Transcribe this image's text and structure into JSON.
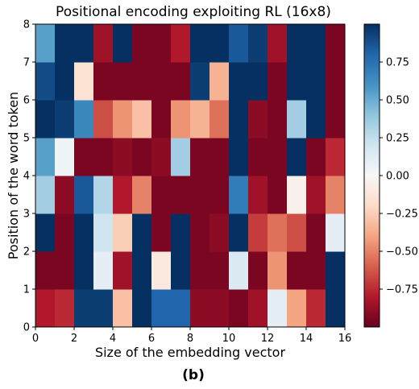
{
  "caption": "(b)",
  "colorbar": {
    "ticks": [
      0.75,
      0.5,
      0.25,
      0.0,
      -0.25,
      -0.5,
      -0.75
    ],
    "tick_labels": [
      "0.75",
      "0.50",
      "0.25",
      "0.00",
      "−0.25",
      "−0.50",
      "−0.75"
    ],
    "range": [
      -1,
      1
    ],
    "colors": [
      "#67001f",
      "#b2182b",
      "#d6604d",
      "#f4a582",
      "#fddbc7",
      "#f7f7f7",
      "#d1e5f0",
      "#92c5de",
      "#4393c3",
      "#2166ac",
      "#053061"
    ]
  },
  "chart_data": {
    "type": "heatmap",
    "title": "Positional encoding exploiting RL (16x8)",
    "xlabel": "Size of the embedding vector",
    "ylabel": "Position of the word token",
    "colormap": "RdBu",
    "xlim": [
      0,
      16
    ],
    "ylim": [
      0,
      8
    ],
    "xticks": [
      0,
      2,
      4,
      6,
      8,
      10,
      12,
      14,
      16
    ],
    "yticks": [
      0,
      1,
      2,
      3,
      4,
      5,
      6,
      7,
      8
    ],
    "value_range": [
      -1,
      1
    ],
    "rows_bottom_to_top": [
      [
        -0.8,
        -0.75,
        0.95,
        0.95,
        -0.3,
        1.0,
        0.8,
        0.8,
        -0.9,
        -0.9,
        -0.95,
        -0.85,
        0.1,
        -0.4,
        -0.75,
        1.0
      ],
      [
        -0.95,
        -0.95,
        1.0,
        0.1,
        -0.85,
        1.0,
        -0.1,
        1.0,
        -0.95,
        -0.95,
        0.15,
        -0.95,
        -0.45,
        -0.95,
        -0.95,
        1.0
      ],
      [
        1.0,
        -0.95,
        1.0,
        0.2,
        -0.25,
        1.0,
        -0.95,
        1.0,
        -0.95,
        -0.9,
        1.0,
        -0.7,
        -0.55,
        -0.65,
        -0.95,
        0.1
      ],
      [
        0.35,
        -0.9,
        0.85,
        0.3,
        -0.8,
        -0.5,
        -0.95,
        -0.95,
        -0.95,
        -0.95,
        0.7,
        -0.85,
        -0.95,
        -0.05,
        -0.85,
        -0.5
      ],
      [
        0.55,
        0.05,
        -0.95,
        -0.95,
        -0.9,
        -0.95,
        -0.9,
        0.35,
        -0.95,
        -0.95,
        1.0,
        -0.95,
        -0.95,
        1.0,
        -0.95,
        -0.75
      ],
      [
        1.0,
        0.95,
        0.65,
        -0.65,
        -0.45,
        -0.3,
        -0.95,
        -0.45,
        -0.35,
        -0.55,
        1.0,
        -0.9,
        -0.95,
        0.35,
        1.0,
        -0.95
      ],
      [
        0.9,
        1.0,
        -0.15,
        -0.95,
        -0.95,
        -0.95,
        -0.95,
        -0.95,
        0.95,
        -0.35,
        1.0,
        1.0,
        -0.95,
        1.0,
        1.0,
        -0.95
      ],
      [
        0.55,
        1.0,
        1.0,
        -0.85,
        1.0,
        -0.95,
        -0.95,
        -0.8,
        1.0,
        1.0,
        0.85,
        0.95,
        -0.85,
        1.0,
        1.0,
        -0.95
      ]
    ]
  }
}
